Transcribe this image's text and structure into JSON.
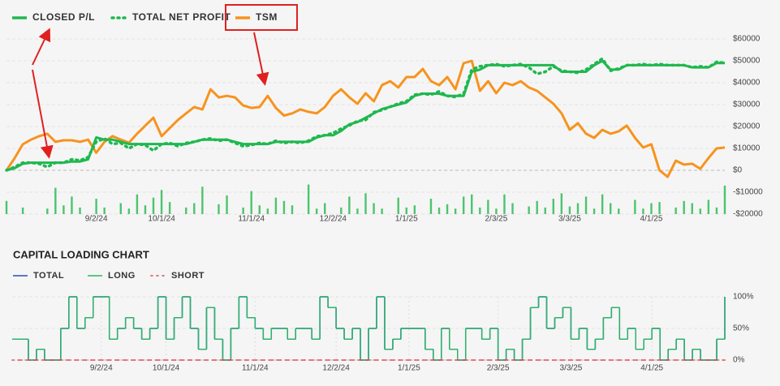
{
  "chart_data": [
    {
      "type": "line",
      "categories": [
        null,
        null,
        null,
        null,
        null,
        null,
        null,
        null,
        null,
        null,
        null,
        "9/2/24",
        null,
        null,
        null,
        null,
        null,
        null,
        null,
        "10/1/24",
        null,
        null,
        null,
        null,
        null,
        null,
        null,
        null,
        null,
        null,
        "11/1/24",
        null,
        null,
        null,
        null,
        null,
        null,
        null,
        null,
        null,
        "12/2/24",
        null,
        null,
        null,
        null,
        null,
        null,
        null,
        null,
        "1/1/25",
        null,
        null,
        null,
        null,
        null,
        null,
        null,
        null,
        null,
        null,
        "2/3/25",
        null,
        null,
        null,
        null,
        null,
        null,
        null,
        null,
        "3/3/25",
        null,
        null,
        null,
        null,
        null,
        null,
        null,
        null,
        null,
        "4/1/25",
        null,
        null,
        null,
        null,
        null,
        null,
        null,
        null,
        null
      ],
      "ylim": [
        -20000,
        60000
      ],
      "yticks": [
        {
          "value": -20000,
          "label": "-$20000"
        },
        {
          "value": -10000,
          "label": "-$10000"
        },
        {
          "value": 0,
          "label": "$0"
        },
        {
          "value": 10000,
          "label": "$10000"
        },
        {
          "value": 20000,
          "label": "$20000"
        },
        {
          "value": 30000,
          "label": "$30000"
        },
        {
          "value": 40000,
          "label": "$40000"
        },
        {
          "value": 50000,
          "label": "$50000"
        },
        {
          "value": 60000,
          "label": "$60000"
        }
      ],
      "grid": true,
      "series": [
        {
          "type": "bar",
          "color": "#4cc46e",
          "values": [
            -14000,
            null,
            -17000,
            null,
            null,
            -17500,
            -8000,
            -16000,
            -12000,
            -17000,
            null,
            -13000,
            -17000,
            null,
            -15000,
            -17500,
            -11000,
            -16000,
            -12500,
            -9000,
            -14500,
            null,
            -17000,
            -15000,
            -7500,
            null,
            -15500,
            -11500,
            null,
            -17000,
            -9500,
            -16000,
            -17500,
            -12500,
            -14000,
            -16000,
            null,
            -6500,
            -17500,
            -15000,
            null,
            -17000,
            -12000,
            -17500,
            -10500,
            -15000,
            -17500,
            null,
            -12500,
            -17000,
            -16000,
            null,
            -13000,
            -17000,
            -15500,
            -17500,
            -12000,
            -11000,
            -17000,
            -13500,
            -17500,
            -11000,
            -15000,
            null,
            -16500,
            -14000,
            -17000,
            -13000,
            -10500,
            -16500,
            -15000,
            -12000,
            -17500,
            -11000,
            -15000,
            -17500,
            null,
            -13500,
            -17500,
            -15000,
            -14500,
            null,
            -17000,
            -14000,
            -15000,
            -17500,
            -13500,
            -17000,
            -7000
          ]
        },
        {
          "name": "TSM",
          "color": "#f7931e",
          "values": [
            0,
            5600,
            11900,
            14000,
            15600,
            16700,
            13000,
            13700,
            13700,
            13000,
            14000,
            8000,
            13000,
            15600,
            14000,
            12600,
            16700,
            20400,
            24000,
            15600,
            19300,
            23000,
            26000,
            28900,
            27800,
            37000,
            33300,
            34000,
            33300,
            29600,
            28500,
            28900,
            34000,
            28500,
            25000,
            26000,
            27800,
            26700,
            26000,
            28900,
            34000,
            37000,
            33300,
            30400,
            35200,
            31500,
            38900,
            40700,
            37800,
            42600,
            42600,
            46300,
            40700,
            38900,
            42600,
            37000,
            48900,
            50000,
            36300,
            40700,
            35200,
            40000,
            38900,
            40700,
            37800,
            36300,
            33300,
            30400,
            26000,
            18500,
            21500,
            16700,
            14800,
            18500,
            16700,
            17800,
            20400,
            14800,
            10400,
            11900,
            0,
            -3000,
            4400,
            2600,
            3000,
            700,
            5600,
            10000,
            10400
          ]
        },
        {
          "name": "TOTAL NET PROFIT",
          "color": "#1fb84f",
          "dash": "dotted",
          "values": [
            0,
            1500,
            3500,
            3500,
            3000,
            1500,
            3500,
            3500,
            5000,
            4500,
            6000,
            13000,
            14500,
            12000,
            12500,
            10000,
            12000,
            11500,
            9000,
            12000,
            12500,
            11000,
            12500,
            13000,
            14000,
            14500,
            13500,
            14000,
            12500,
            11000,
            11500,
            12500,
            12000,
            13500,
            12500,
            13000,
            12500,
            13500,
            15500,
            16000,
            17000,
            19000,
            20500,
            22500,
            23000,
            26500,
            27500,
            29000,
            30500,
            31500,
            34500,
            35000,
            34500,
            36000,
            34000,
            33500,
            35000,
            46000,
            47500,
            48000,
            48500,
            47500,
            48000,
            48500,
            47000,
            44000,
            45000,
            47500,
            45500,
            45000,
            44500,
            46000,
            48500,
            51000,
            45500,
            46500,
            48000,
            48000,
            48500,
            48000,
            48500,
            48000,
            48000,
            48000,
            47000,
            47500,
            47000,
            49500,
            49000
          ]
        },
        {
          "name": "CLOSED P/L",
          "color": "#1fb84f",
          "values": [
            0,
            1000,
            3000,
            3500,
            3500,
            3500,
            3500,
            3500,
            4000,
            4000,
            5000,
            15000,
            14000,
            14000,
            13000,
            12000,
            12000,
            12000,
            12000,
            12000,
            12000,
            12000,
            12000,
            13000,
            14000,
            14000,
            14000,
            14000,
            13000,
            12000,
            12000,
            12000,
            12000,
            13000,
            13000,
            13000,
            13000,
            13000,
            15000,
            16000,
            16000,
            18000,
            21000,
            22000,
            24000,
            26000,
            28000,
            29000,
            30000,
            31000,
            34000,
            35000,
            35000,
            35000,
            34000,
            34000,
            34000,
            45000,
            46000,
            48000,
            48000,
            48000,
            48000,
            48000,
            48000,
            48000,
            48000,
            48000,
            45000,
            45000,
            45000,
            45000,
            48000,
            50000,
            46000,
            46000,
            48000,
            48000,
            48000,
            48000,
            48000,
            48000,
            48000,
            48000,
            47000,
            47000,
            47000,
            49000,
            49000
          ]
        }
      ]
    },
    {
      "type": "line",
      "title": "CAPITAL LOADING CHART",
      "step": true,
      "xgrid": true,
      "categories": [
        null,
        null,
        null,
        null,
        null,
        null,
        null,
        null,
        null,
        null,
        null,
        "9/2/24",
        null,
        null,
        null,
        null,
        null,
        null,
        null,
        "10/1/24",
        null,
        null,
        null,
        null,
        null,
        null,
        null,
        null,
        null,
        null,
        "11/1/24",
        null,
        null,
        null,
        null,
        null,
        null,
        null,
        null,
        null,
        "12/2/24",
        null,
        null,
        null,
        null,
        null,
        null,
        null,
        null,
        "1/1/25",
        null,
        null,
        null,
        null,
        null,
        null,
        null,
        null,
        null,
        null,
        "2/3/25",
        null,
        null,
        null,
        null,
        null,
        null,
        null,
        null,
        "3/3/25",
        null,
        null,
        null,
        null,
        null,
        null,
        null,
        null,
        null,
        "4/1/25",
        null,
        null,
        null,
        null,
        null,
        null,
        null,
        null,
        null
      ],
      "ylim": [
        0,
        100
      ],
      "yticks": [
        {
          "value": 0,
          "label": "0%"
        },
        {
          "value": 50,
          "label": "50%"
        },
        {
          "value": 100,
          "label": "100%"
        }
      ],
      "grid": true,
      "series": [
        {
          "name": "TOTAL",
          "color": "#2a4fb8",
          "values": [
            33,
            33,
            0,
            17,
            0,
            0,
            50,
            100,
            50,
            67,
            100,
            100,
            33,
            50,
            67,
            50,
            33,
            50,
            100,
            33,
            67,
            100,
            50,
            17,
            83,
            33,
            0,
            50,
            100,
            67,
            50,
            33,
            50,
            50,
            33,
            50,
            50,
            33,
            100,
            83,
            50,
            33,
            50,
            0,
            50,
            100,
            17,
            33,
            50,
            50,
            50,
            17,
            0,
            50,
            17,
            0,
            50,
            50,
            33,
            50,
            0,
            17,
            0,
            33,
            83,
            100,
            50,
            67,
            83,
            33,
            50,
            17,
            33,
            67,
            83,
            33,
            50,
            17,
            33,
            50,
            0,
            17,
            33,
            0,
            17,
            0,
            0,
            33,
            100
          ]
        },
        {
          "name": "LONG",
          "color": "#2db36a",
          "values": [
            33,
            33,
            0,
            17,
            0,
            0,
            50,
            100,
            50,
            67,
            100,
            100,
            33,
            50,
            67,
            50,
            33,
            50,
            100,
            33,
            67,
            100,
            50,
            17,
            83,
            33,
            0,
            50,
            100,
            67,
            50,
            33,
            50,
            50,
            33,
            50,
            50,
            33,
            100,
            83,
            50,
            33,
            50,
            0,
            50,
            100,
            17,
            33,
            50,
            50,
            50,
            17,
            0,
            50,
            17,
            0,
            50,
            50,
            33,
            50,
            0,
            17,
            0,
            33,
            83,
            100,
            50,
            67,
            83,
            33,
            50,
            17,
            33,
            67,
            83,
            33,
            50,
            17,
            33,
            50,
            0,
            17,
            33,
            0,
            17,
            0,
            0,
            33,
            100
          ]
        },
        {
          "name": "SHORT",
          "color": "#e0474c",
          "dash": "dotted",
          "values": [
            0,
            0,
            0,
            0,
            0,
            0,
            0,
            0,
            0,
            0,
            0,
            0,
            0,
            0,
            0,
            0,
            0,
            0,
            0,
            0,
            0,
            0,
            0,
            0,
            0,
            0,
            0,
            0,
            0,
            0,
            0,
            0,
            0,
            0,
            0,
            0,
            0,
            0,
            0,
            0,
            0,
            0,
            0,
            0,
            0,
            0,
            0,
            0,
            0,
            0,
            0,
            0,
            0,
            0,
            0,
            0,
            0,
            0,
            0,
            0,
            0,
            0,
            0,
            0,
            0,
            0,
            0,
            0,
            0,
            0,
            0,
            0,
            0,
            0,
            0,
            0,
            0,
            0,
            0,
            0,
            0,
            0,
            0,
            0,
            0,
            0,
            0,
            0,
            0
          ]
        }
      ]
    }
  ]
}
